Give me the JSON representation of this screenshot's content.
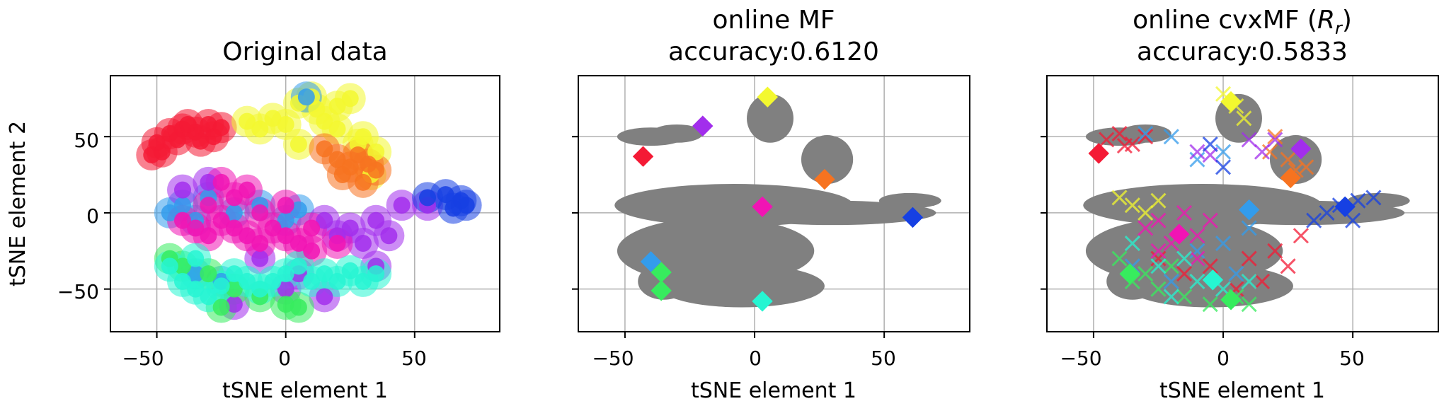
{
  "chart_data": [
    {
      "type": "scatter",
      "title": "Original data",
      "subtitle": "",
      "xlabel": "tSNE element 1",
      "ylabel": "tSNE element 2",
      "xticks": [
        -50,
        0,
        50
      ],
      "yticks": [
        -50,
        0,
        50
      ],
      "xtick_labels": [
        "−50",
        "0",
        "50"
      ],
      "ytick_labels": [
        "−50",
        "0",
        "50"
      ],
      "xlim": [
        -68,
        83
      ],
      "ylim": [
        -78,
        90
      ],
      "grid": true,
      "markers": "circle",
      "series": [
        {
          "color": "#f41a35",
          "points": [
            [
              -50,
              46
            ],
            [
              -45,
              52
            ],
            [
              -40,
              55
            ],
            [
              -35,
              53
            ],
            [
              -30,
              58
            ],
            [
              -42,
              48
            ],
            [
              -48,
              40
            ],
            [
              -38,
              58
            ],
            [
              -28,
              50
            ],
            [
              -33,
              47
            ],
            [
              -52,
              38
            ],
            [
              -25,
              56
            ]
          ]
        },
        {
          "color": "#f3f82f",
          "points": [
            [
              -10,
              55
            ],
            [
              -5,
              62
            ],
            [
              0,
              58
            ],
            [
              5,
              72
            ],
            [
              10,
              76
            ],
            [
              12,
              68
            ],
            [
              15,
              60
            ],
            [
              20,
              70
            ],
            [
              25,
              75
            ],
            [
              20,
              55
            ],
            [
              -15,
              60
            ],
            [
              30,
              50
            ],
            [
              35,
              40
            ],
            [
              33,
              25
            ],
            [
              28,
              45
            ],
            [
              5,
              45
            ]
          ]
        },
        {
          "color": "#f77320",
          "points": [
            [
              15,
              42
            ],
            [
              20,
              35
            ],
            [
              25,
              30
            ],
            [
              30,
              20
            ],
            [
              35,
              28
            ],
            [
              22,
              25
            ],
            [
              28,
              38
            ],
            [
              32,
              32
            ]
          ]
        },
        {
          "color": "#339cec",
          "points": [
            [
              -45,
              0
            ],
            [
              -40,
              5
            ],
            [
              -35,
              -5
            ],
            [
              -30,
              10
            ],
            [
              -20,
              0
            ],
            [
              -10,
              5
            ],
            [
              0,
              -5
            ],
            [
              5,
              2
            ],
            [
              8,
              76
            ],
            [
              -25,
              -45
            ],
            [
              -35,
              -40
            ]
          ]
        },
        {
          "color": "#a22eec",
          "points": [
            [
              15,
              -5
            ],
            [
              25,
              -10
            ],
            [
              35,
              -5
            ],
            [
              45,
              5
            ],
            [
              55,
              5
            ],
            [
              40,
              -15
            ],
            [
              30,
              -20
            ],
            [
              20,
              -15
            ],
            [
              -40,
              15
            ],
            [
              -30,
              20
            ],
            [
              -10,
              -30
            ],
            [
              5,
              -40
            ],
            [
              0,
              -50
            ],
            [
              15,
              -55
            ],
            [
              -20,
              -60
            ],
            [
              35,
              -35
            ]
          ]
        },
        {
          "color": "#1640e3",
          "points": [
            [
              55,
              10
            ],
            [
              62,
              12
            ],
            [
              68,
              8
            ],
            [
              70,
              5
            ],
            [
              65,
              3
            ]
          ]
        },
        {
          "color": "#f114b4",
          "points": [
            [
              -40,
              -5
            ],
            [
              -35,
              -10
            ],
            [
              -30,
              -15
            ],
            [
              -25,
              -5
            ],
            [
              -20,
              -10
            ],
            [
              -15,
              -15
            ],
            [
              -10,
              -20
            ],
            [
              -5,
              -10
            ],
            [
              0,
              -15
            ],
            [
              5,
              -20
            ],
            [
              10,
              -25
            ],
            [
              -30,
              5
            ],
            [
              -20,
              10
            ],
            [
              -10,
              0
            ],
            [
              0,
              5
            ],
            [
              -25,
              20
            ],
            [
              -15,
              15
            ],
            [
              10,
              -10
            ],
            [
              20,
              -20
            ]
          ]
        },
        {
          "color": "#37ec5e",
          "points": [
            [
              -45,
              -30
            ],
            [
              -40,
              -35
            ],
            [
              -30,
              -40
            ],
            [
              -20,
              -50
            ],
            [
              -10,
              -55
            ],
            [
              0,
              -60
            ],
            [
              5,
              -62
            ],
            [
              -25,
              -62
            ]
          ]
        },
        {
          "color": "#26f5d2",
          "points": [
            [
              -45,
              -35
            ],
            [
              -40,
              -45
            ],
            [
              -35,
              -50
            ],
            [
              -30,
              -55
            ],
            [
              -25,
              -48
            ],
            [
              -20,
              -40
            ],
            [
              -15,
              -45
            ],
            [
              -10,
              -50
            ],
            [
              -5,
              -45
            ],
            [
              0,
              -40
            ],
            [
              5,
              -35
            ],
            [
              10,
              -45
            ],
            [
              15,
              -40
            ],
            [
              20,
              -45
            ],
            [
              25,
              -38
            ],
            [
              30,
              -45
            ],
            [
              35,
              -40
            ],
            [
              -35,
              -30
            ]
          ]
        }
      ]
    },
    {
      "type": "scatter",
      "title": "online MF",
      "subtitle": "accuracy:0.6120",
      "xlabel": "tSNE element 1",
      "ylabel": "",
      "xticks": [
        -50,
        0,
        50
      ],
      "yticks": [
        -50,
        0,
        50
      ],
      "xtick_labels": [
        "−50",
        "0",
        "50"
      ],
      "xlim": [
        -68,
        83
      ],
      "ylim": [
        -78,
        90
      ],
      "grid": true,
      "background_color": "#808080",
      "markers": "diamond",
      "centroids": [
        {
          "x": -43,
          "y": 37,
          "color": "#f41a35"
        },
        {
          "x": -20,
          "y": 57,
          "color": "#a22eec"
        },
        {
          "x": 5,
          "y": 76,
          "color": "#f3f82f"
        },
        {
          "x": 27,
          "y": 22,
          "color": "#f77320"
        },
        {
          "x": 3,
          "y": 4,
          "color": "#f114b4"
        },
        {
          "x": 61,
          "y": -3,
          "color": "#1640e3"
        },
        {
          "x": -40,
          "y": -32,
          "color": "#339cec"
        },
        {
          "x": -36,
          "y": -39,
          "color": "#37ec5e"
        },
        {
          "x": -36,
          "y": -51,
          "color": "#37ec5e"
        },
        {
          "x": 3,
          "y": -58,
          "color": "#26f5d2"
        }
      ]
    },
    {
      "type": "scatter",
      "title": "online cvxMF (Rr)",
      "subtitle": "accuracy:0.5833",
      "xlabel": "tSNE element 1",
      "ylabel": "",
      "xticks": [
        -50,
        0,
        50
      ],
      "yticks": [
        -50,
        0,
        50
      ],
      "xtick_labels": [
        "−50",
        "0",
        "50"
      ],
      "xlim": [
        -68,
        83
      ],
      "ylim": [
        -78,
        90
      ],
      "grid": true,
      "background_color": "#808080",
      "markers": "diamond",
      "centroids": [
        {
          "x": -48,
          "y": 39,
          "color": "#f41a35"
        },
        {
          "x": 3,
          "y": 73,
          "color": "#f3f82f"
        },
        {
          "x": 30,
          "y": 42,
          "color": "#a22eec"
        },
        {
          "x": 26,
          "y": 23,
          "color": "#f77320"
        },
        {
          "x": 10,
          "y": 2,
          "color": "#339cec"
        },
        {
          "x": 47,
          "y": 4,
          "color": "#1640e3"
        },
        {
          "x": -17,
          "y": -14,
          "color": "#f114b4"
        },
        {
          "x": -36,
          "y": -40,
          "color": "#37ec5e"
        },
        {
          "x": -4,
          "y": -44,
          "color": "#26f5d2"
        },
        {
          "x": 3,
          "y": -57,
          "color": "#37ec5e"
        }
      ],
      "cross_markers": [
        {
          "color": "#f41a35",
          "points": [
            [
              -45,
              48
            ],
            [
              -40,
              52
            ],
            [
              -35,
              45
            ],
            [
              -30,
              50
            ],
            [
              -38,
              44
            ],
            [
              -25,
              -30
            ],
            [
              -15,
              -40
            ],
            [
              10,
              -30
            ],
            [
              20,
              -25
            ],
            [
              30,
              -15
            ],
            [
              5,
              -50
            ],
            [
              -5,
              -35
            ],
            [
              15,
              -45
            ],
            [
              25,
              -35
            ]
          ]
        },
        {
          "color": "#339cec",
          "points": [
            [
              -30,
              52
            ],
            [
              -20,
              50
            ],
            [
              -10,
              35
            ],
            [
              0,
              40
            ],
            [
              -35,
              -35
            ],
            [
              -20,
              -45
            ],
            [
              0,
              -20
            ],
            [
              10,
              -10
            ],
            [
              -10,
              -25
            ],
            [
              5,
              -40
            ]
          ]
        },
        {
          "color": "#f3f82f",
          "points": [
            [
              0,
              78
            ],
            [
              5,
              70
            ],
            [
              8,
              62
            ],
            [
              -40,
              10
            ],
            [
              -35,
              5
            ],
            [
              -30,
              0
            ],
            [
              -25,
              8
            ]
          ]
        },
        {
          "color": "#f77320",
          "points": [
            [
              20,
              50
            ],
            [
              25,
              35
            ],
            [
              28,
              28
            ],
            [
              32,
              30
            ],
            [
              18,
              40
            ]
          ]
        },
        {
          "color": "#a22eec",
          "points": [
            [
              -5,
              38
            ],
            [
              10,
              48
            ],
            [
              20,
              48
            ],
            [
              15,
              40
            ],
            [
              -10,
              40
            ]
          ]
        },
        {
          "color": "#1640e3",
          "points": [
            [
              -5,
              45
            ],
            [
              0,
              30
            ],
            [
              35,
              -5
            ],
            [
              40,
              0
            ],
            [
              45,
              5
            ],
            [
              52,
              8
            ],
            [
              58,
              10
            ],
            [
              50,
              -5
            ]
          ]
        },
        {
          "color": "#f114b4",
          "points": [
            [
              -30,
              -10
            ],
            [
              -25,
              -5
            ],
            [
              -20,
              -20
            ],
            [
              -10,
              -15
            ],
            [
              -5,
              -5
            ],
            [
              -15,
              0
            ],
            [
              -25,
              -25
            ],
            [
              -10,
              -30
            ]
          ]
        },
        {
          "color": "#37ec5e",
          "points": [
            [
              -40,
              -30
            ],
            [
              -35,
              -45
            ],
            [
              -30,
              -40
            ],
            [
              -25,
              -50
            ],
            [
              -15,
              -55
            ],
            [
              -5,
              -60
            ],
            [
              5,
              -55
            ],
            [
              10,
              -60
            ],
            [
              -20,
              -35
            ]
          ]
        },
        {
          "color": "#26f5d2",
          "points": [
            [
              -35,
              -20
            ],
            [
              -25,
              -35
            ],
            [
              -15,
              -30
            ],
            [
              -10,
              -45
            ],
            [
              0,
              -50
            ],
            [
              10,
              -45
            ],
            [
              -20,
              -55
            ]
          ]
        }
      ]
    }
  ]
}
